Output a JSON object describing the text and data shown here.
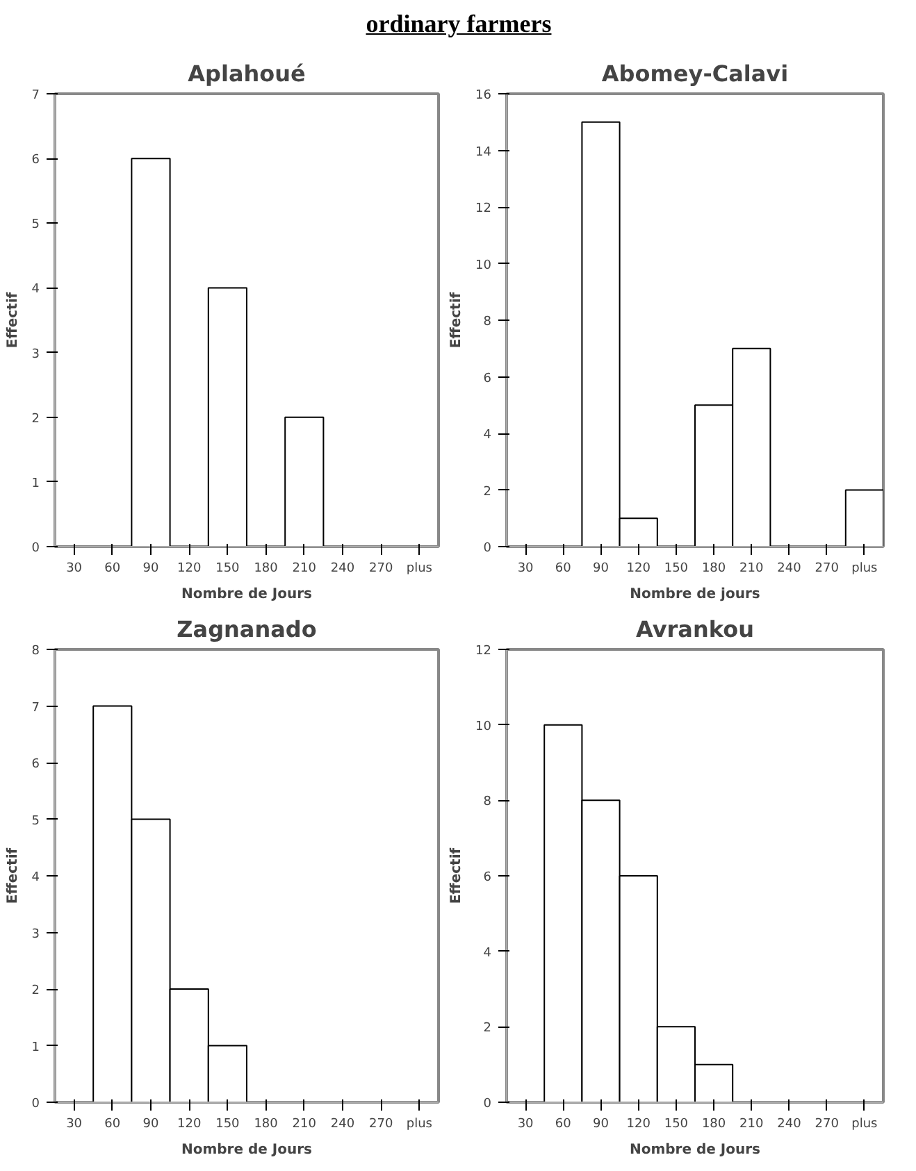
{
  "chart_data": [
    {
      "type": "bar",
      "title": "Aplahoué",
      "annotations": [
        "ordinary farmers"
      ],
      "xlabel": "Nombre de Jours",
      "ylabel": "Effectif",
      "categories": [
        "30",
        "60",
        "90",
        "120",
        "150",
        "180",
        "210",
        "240",
        "270",
        "plus"
      ],
      "values": [
        0,
        0,
        6,
        0,
        4,
        0,
        2,
        0,
        0,
        0
      ],
      "color": "#ffffff",
      "ylim": [
        0,
        7
      ],
      "yticks": [
        0,
        1,
        2,
        3,
        4,
        5,
        6,
        7
      ],
      "grid": false,
      "legend": false
    },
    {
      "type": "bar",
      "title": "Abomey-Calavi",
      "xlabel": "Nombre de jours",
      "ylabel": "Effectif",
      "categories": [
        "30",
        "60",
        "90",
        "120",
        "150",
        "180",
        "210",
        "240",
        "270",
        "plus"
      ],
      "values": [
        0,
        0,
        15,
        1,
        0,
        5,
        7,
        0,
        0,
        2
      ],
      "color": "#ffffff",
      "ylim": [
        0,
        16
      ],
      "yticks": [
        0,
        2,
        4,
        6,
        8,
        10,
        12,
        14,
        16
      ],
      "grid": false,
      "legend": false
    },
    {
      "type": "bar",
      "title": "Zagnanado",
      "xlabel": "Nombre de Jours",
      "ylabel": "Effectif",
      "categories": [
        "30",
        "60",
        "90",
        "120",
        "150",
        "180",
        "210",
        "240",
        "270",
        "plus"
      ],
      "values": [
        0,
        7,
        5,
        2,
        1,
        0,
        0,
        0,
        0,
        0
      ],
      "color": "#ffffff",
      "ylim": [
        0,
        8
      ],
      "yticks": [
        0,
        1,
        2,
        3,
        4,
        5,
        6,
        7,
        8
      ],
      "grid": false,
      "legend": false
    },
    {
      "type": "bar",
      "title": "Avrankou",
      "xlabel": "Nombre de Jours",
      "ylabel": "Effectif",
      "categories": [
        "30",
        "60",
        "90",
        "120",
        "150",
        "180",
        "210",
        "240",
        "270",
        "plus"
      ],
      "values": [
        0,
        10,
        8,
        6,
        2,
        1,
        0,
        0,
        0,
        0
      ],
      "color": "#ffffff",
      "ylim": [
        0,
        12
      ],
      "yticks": [
        0,
        2,
        4,
        6,
        8,
        10,
        12
      ],
      "grid": false,
      "legend": false
    }
  ]
}
